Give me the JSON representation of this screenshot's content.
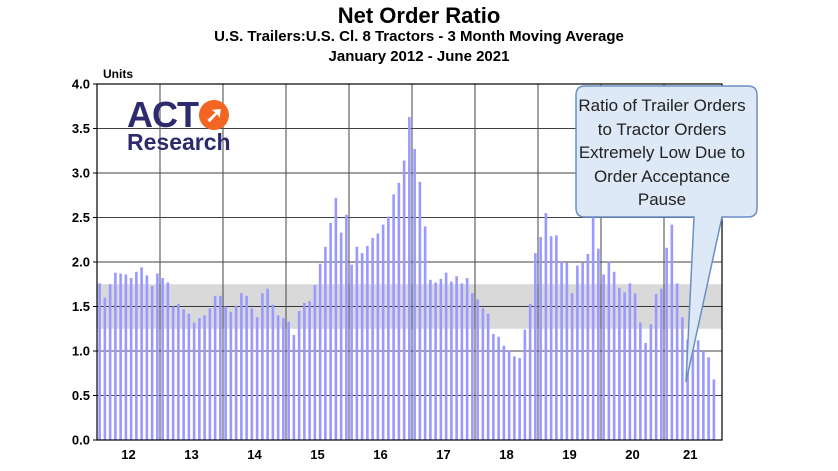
{
  "chart_data": {
    "type": "bar",
    "title": "Net Order Ratio",
    "subtitle": "U.S. Trailers:U.S. Cl. 8 Tractors - 3 Month Moving Average",
    "date_range": "January 2012 - June 2021",
    "ylabel": "Units",
    "xlabel": "",
    "ylim": [
      0,
      4.0
    ],
    "yticks": [
      "0.0",
      "0.5",
      "1.0",
      "1.5",
      "2.0",
      "2.5",
      "3.0",
      "3.5",
      "4.0"
    ],
    "year_labels": [
      "12",
      "13",
      "14",
      "15",
      "16",
      "17",
      "18",
      "19",
      "20",
      "21"
    ],
    "reference_band": [
      1.25,
      1.75
    ],
    "bar_color": "#9999ff",
    "band_color": "#d9d9d9",
    "annotation": "Ratio of Trailer Orders to Tractor Orders Extremely Low Due to Order Acceptance Pause",
    "values": [
      1.76,
      1.6,
      1.75,
      1.88,
      1.87,
      1.86,
      1.82,
      1.89,
      1.94,
      1.85,
      1.73,
      1.87,
      1.82,
      1.77,
      1.5,
      1.53,
      1.47,
      1.42,
      1.32,
      1.37,
      1.4,
      1.48,
      1.62,
      1.62,
      1.5,
      1.44,
      1.51,
      1.65,
      1.62,
      1.48,
      1.38,
      1.65,
      1.7,
      1.52,
      1.4,
      1.37,
      1.33,
      1.18,
      1.45,
      1.54,
      1.56,
      1.74,
      1.98,
      2.17,
      2.44,
      2.72,
      2.33,
      2.53,
      1.97,
      2.17,
      2.1,
      2.18,
      2.27,
      2.32,
      2.42,
      2.51,
      2.76,
      2.89,
      3.14,
      3.63,
      3.27,
      2.9,
      2.4,
      1.8,
      1.77,
      1.81,
      1.88,
      1.78,
      1.84,
      1.76,
      1.82,
      1.65,
      1.58,
      1.48,
      1.42,
      1.19,
      1.16,
      1.06,
      1.01,
      0.94,
      0.92,
      1.24,
      1.53,
      2.1,
      2.28,
      2.55,
      2.29,
      2.3,
      2.01,
      1.99,
      1.65,
      1.96,
      1.99,
      2.09,
      2.65,
      2.15,
      1.86,
      2.01,
      1.89,
      1.71,
      1.66,
      1.76,
      1.65,
      1.32,
      1.09,
      1.3,
      1.64,
      1.7,
      2.16,
      2.42,
      1.76,
      1.38,
      1.13,
      1.12,
      1.12,
      1.0,
      0.93,
      0.68
    ]
  }
}
